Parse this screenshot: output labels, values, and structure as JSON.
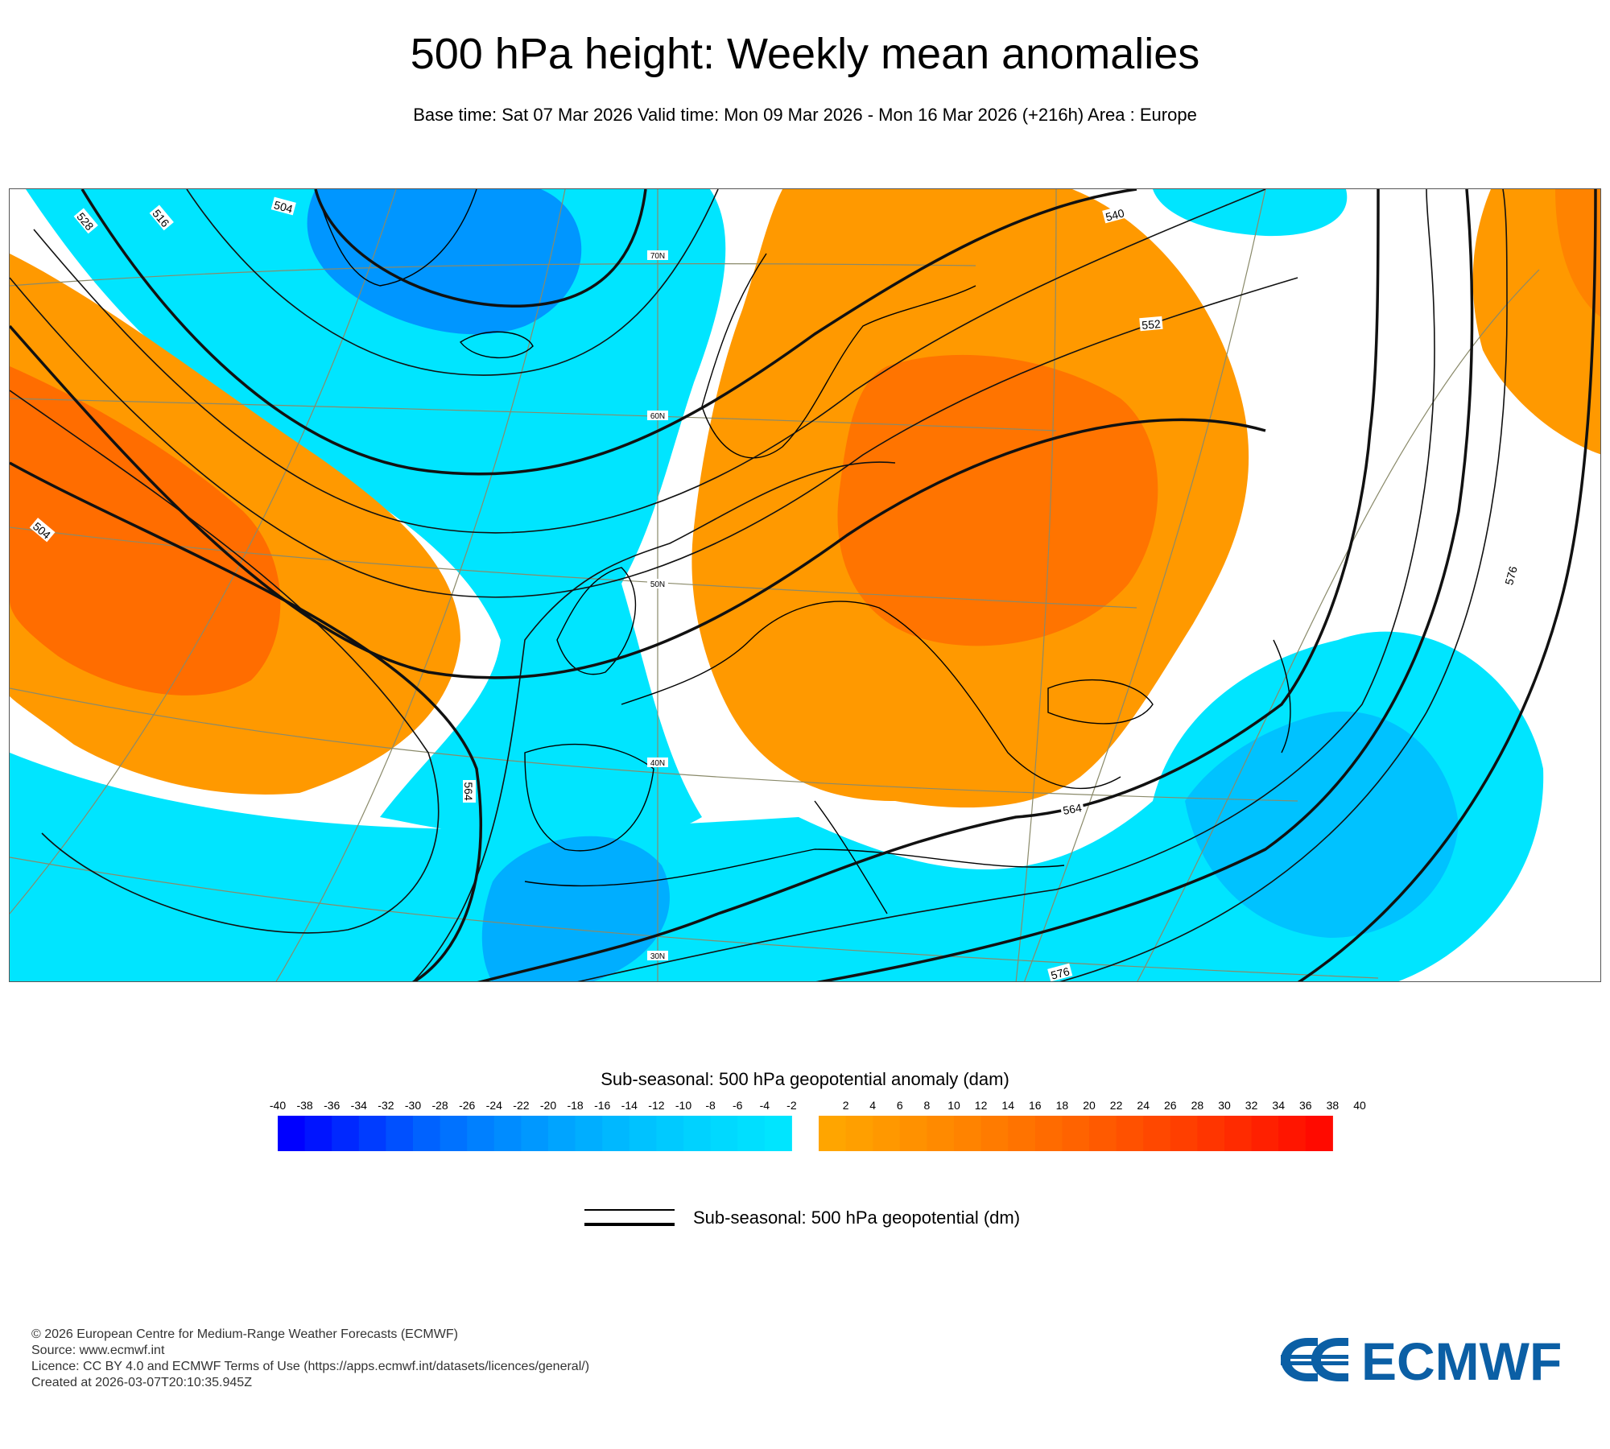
{
  "title": "500 hPa height: Weekly mean anomalies",
  "subtitle": "Base time: Sat 07 Mar 2026 Valid time: Mon 09 Mar 2026 - Mon 16 Mar 2026 (+216h) Area : Europe",
  "map": {
    "contour_labels": [
      "504",
      "516",
      "528",
      "540",
      "552",
      "564",
      "576"
    ],
    "latitude_labels": [
      "70N",
      "60N",
      "50N",
      "40N",
      "30N"
    ],
    "colors": {
      "positive": "#ff9900",
      "strong_positive": "#ff6600",
      "negative": "#00e5ff",
      "strong_negative": "#0096ff",
      "coast": "#000000",
      "grid": "#8a8a6a"
    }
  },
  "legend": {
    "anomaly_title": "Sub-seasonal: 500 hPa geopotential anomaly (dam)",
    "ticks": [
      "-40",
      "-38",
      "-36",
      "-34",
      "-32",
      "-30",
      "-28",
      "-26",
      "-24",
      "-22",
      "-20",
      "-18",
      "-16",
      "-14",
      "-12",
      "-10",
      "-8",
      "-6",
      "-4",
      "-2",
      "2",
      "4",
      "6",
      "8",
      "10",
      "12",
      "14",
      "16",
      "18",
      "20",
      "22",
      "24",
      "26",
      "28",
      "30",
      "32",
      "34",
      "36",
      "38",
      "40"
    ],
    "negative_colors": [
      "#0000ff",
      "#0014ff",
      "#0028ff",
      "#003cff",
      "#0050ff",
      "#0062ff",
      "#0072ff",
      "#0080ff",
      "#008cff",
      "#0098ff",
      "#00a4ff",
      "#00aeff",
      "#00b8ff",
      "#00c2ff",
      "#00caff",
      "#00d2ff",
      "#00d9ff",
      "#00dfff",
      "#00e5ff"
    ],
    "positive_colors": [
      "#ffa500",
      "#ff9f00",
      "#ff9800",
      "#ff9100",
      "#ff8a00",
      "#ff8300",
      "#ff7b00",
      "#ff7300",
      "#ff6b00",
      "#ff6300",
      "#ff5a00",
      "#ff5100",
      "#ff4800",
      "#ff3f00",
      "#ff3500",
      "#ff2b00",
      "#ff2000",
      "#ff1500",
      "#ff0a00"
    ],
    "line_label": "Sub-seasonal: 500 hPa geopotential (dm)"
  },
  "footer": {
    "copyright": "© 2026 European Centre for Medium-Range Weather Forecasts (ECMWF)",
    "source": "Source: www.ecmwf.int",
    "licence": "Licence: CC BY 4.0 and ECMWF Terms of Use (https://apps.ecmwf.int/datasets/licences/general/)",
    "created": "Created at 2026-03-07T20:10:35.945Z"
  },
  "logo_text": "ECMWF"
}
